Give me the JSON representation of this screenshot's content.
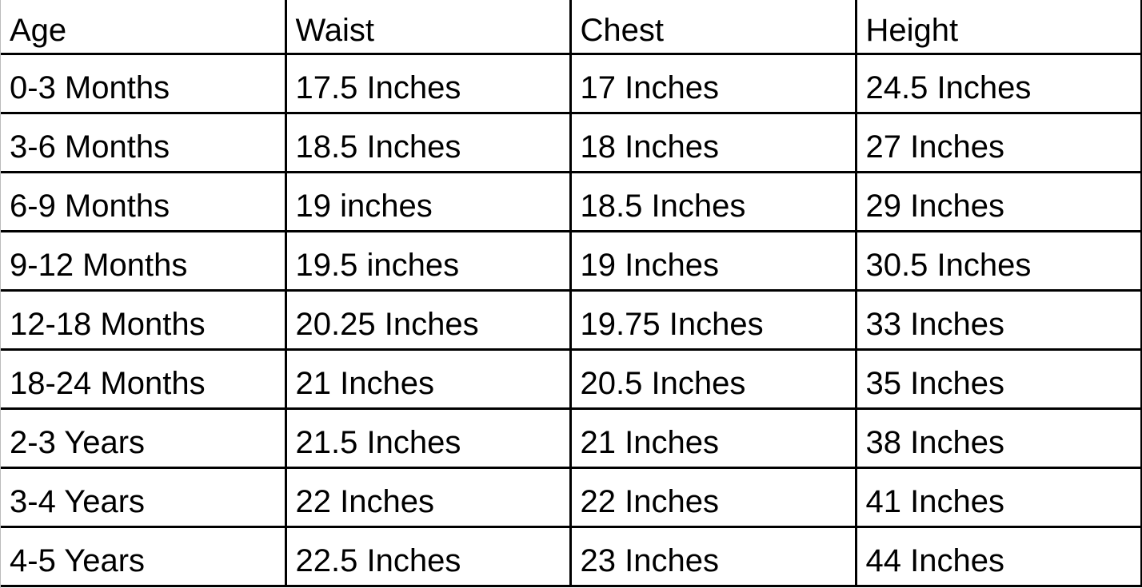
{
  "table": {
    "headers": [
      "Age",
      "Waist",
      "Chest",
      "Height"
    ],
    "rows": [
      [
        "0-3 Months",
        "17.5 Inches",
        "17 Inches",
        "24.5 Inches"
      ],
      [
        "3-6 Months",
        "18.5 Inches",
        "18 Inches",
        "27 Inches"
      ],
      [
        "6-9 Months",
        "19 inches",
        "18.5 Inches",
        "29 Inches"
      ],
      [
        "9-12 Months",
        "19.5 inches",
        "19 Inches",
        "30.5 Inches"
      ],
      [
        "12-18 Months",
        "20.25 Inches",
        "19.75 Inches",
        "33 Inches"
      ],
      [
        "18-24 Months",
        "21 Inches",
        "20.5 Inches",
        "35 Inches"
      ],
      [
        "2-3 Years",
        "21.5 Inches",
        "21 Inches",
        "38 Inches"
      ],
      [
        "3-4 Years",
        "22 Inches",
        "22 Inches",
        "41 Inches"
      ],
      [
        "4-5 Years",
        "22.5 Inches",
        "23 Inches",
        "44 Inches"
      ]
    ]
  }
}
